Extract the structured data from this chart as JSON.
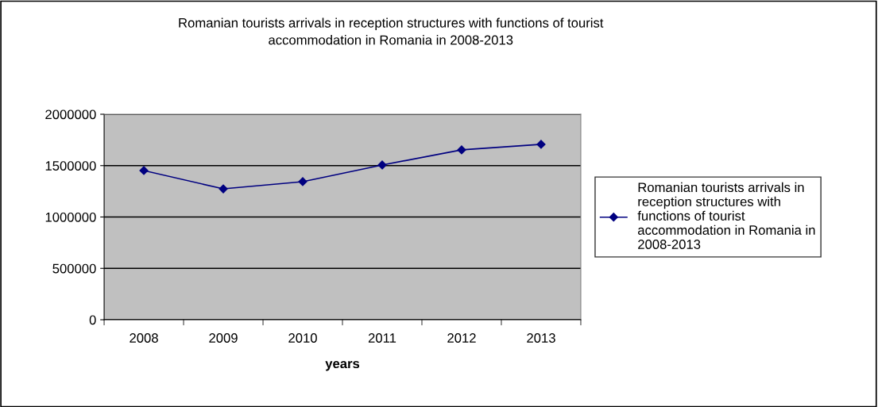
{
  "chart_data": {
    "type": "line",
    "title": "Romanian tourists arrivals in reception structures with functions of tourist accommodation in Romania in 2008-2013",
    "xlabel": "years",
    "categories": [
      "2008",
      "2009",
      "2010",
      "2011",
      "2012",
      "2013"
    ],
    "series": [
      {
        "name": "Romanian tourists arrivals in reception structures with functions of tourist accommodation in Romania in 2008-2013",
        "color": "#000080",
        "values": [
          1452000,
          1274000,
          1344000,
          1506000,
          1653000,
          1707000
        ]
      }
    ],
    "ylim": [
      0,
      2000000
    ],
    "yticks": [
      0,
      500000,
      1000000,
      1500000,
      2000000
    ],
    "grid": "y",
    "legend": "right",
    "marker": "diamond",
    "line_style": "solid"
  }
}
